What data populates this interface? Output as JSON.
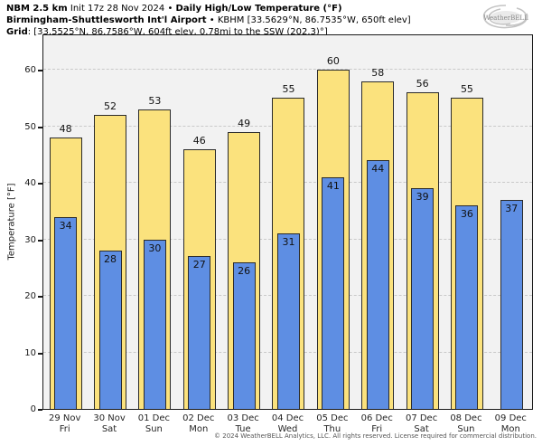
{
  "header": {
    "line1": {
      "model": "NBM 2.5 km",
      "init": "Init 17z 28 Nov 2024",
      "bullet": "•",
      "product": "Daily High/Low Temperature (°F)"
    },
    "line2": {
      "station_name": "Birmingham-Shuttlesworth Int'l Airport",
      "bullet": "•",
      "station_details": "KBHM [33.5629°N, 86.7535°W, 650ft elev]"
    },
    "line3": {
      "label": "Grid",
      "details": ": [33.5525°N, 86.7586°W, 604ft elev, 0.78mi to the SSW (202.3)°]"
    }
  },
  "logo": {
    "text": "WeatherBELL"
  },
  "chart_data": {
    "type": "bar",
    "title": "NBM 2.5 km Daily High/Low Temperature (°F) — Birmingham-Shuttlesworth Int'l Airport (KBHM)",
    "ylabel": "Temperature [°F]",
    "ylim": [
      0,
      66.4
    ],
    "yticks": [
      0,
      10,
      20,
      30,
      40,
      50,
      60
    ],
    "grid": true,
    "legend_position": "none",
    "categories": [
      {
        "date": "29 Nov",
        "day": "Fri"
      },
      {
        "date": "30 Nov",
        "day": "Sat"
      },
      {
        "date": "01 Dec",
        "day": "Sun"
      },
      {
        "date": "02 Dec",
        "day": "Mon"
      },
      {
        "date": "03 Dec",
        "day": "Tue"
      },
      {
        "date": "04 Dec",
        "day": "Wed"
      },
      {
        "date": "05 Dec",
        "day": "Thu"
      },
      {
        "date": "06 Dec",
        "day": "Fri"
      },
      {
        "date": "07 Dec",
        "day": "Sat"
      },
      {
        "date": "08 Dec",
        "day": "Sun"
      },
      {
        "date": "09 Dec",
        "day": "Mon"
      }
    ],
    "series": [
      {
        "name": "Daily High",
        "color": "#FBE27D",
        "values": [
          48,
          52,
          53,
          46,
          49,
          55,
          60,
          58,
          56,
          55,
          null
        ]
      },
      {
        "name": "Daily Low",
        "color": "#5E8EE3",
        "values": [
          34,
          28,
          30,
          27,
          26,
          31,
          41,
          44,
          39,
          36,
          37
        ]
      }
    ]
  },
  "footer": {
    "copyright": "© 2024 WeatherBELL Analytics, LLC. All rights reserved. License required for commercial distribution."
  }
}
